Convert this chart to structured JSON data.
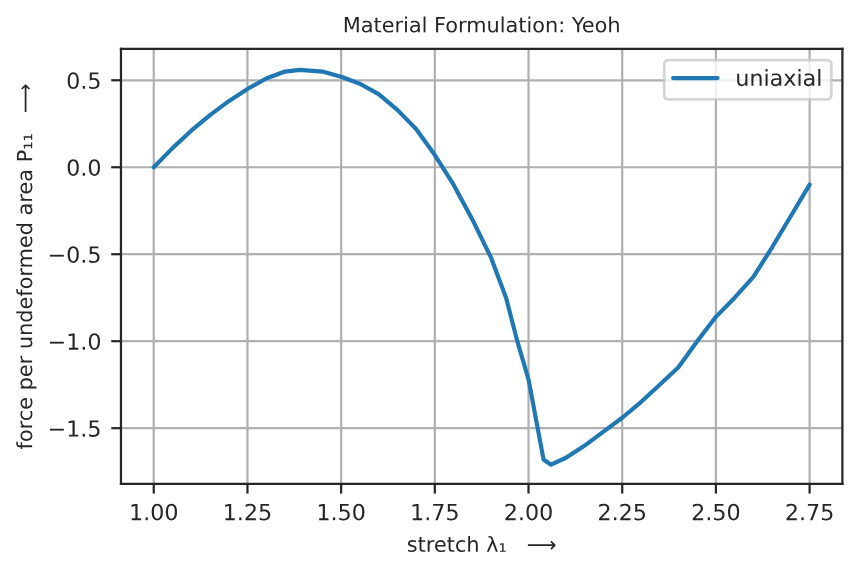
{
  "chart_data": {
    "type": "line",
    "title": "Material Formulation: Yeoh",
    "xlabel": "stretch λ₁   ⟶",
    "ylabel": "force per undeformed area P₁₁   ⟶",
    "xlim": [
      0.9125,
      2.8375
    ],
    "ylim": [
      -1.82,
      0.68
    ],
    "xticks": [
      {
        "value": 1.0,
        "label": "1.00"
      },
      {
        "value": 1.25,
        "label": "1.25"
      },
      {
        "value": 1.5,
        "label": "1.50"
      },
      {
        "value": 1.75,
        "label": "1.75"
      },
      {
        "value": 2.0,
        "label": "2.00"
      },
      {
        "value": 2.25,
        "label": "2.25"
      },
      {
        "value": 2.5,
        "label": "2.50"
      },
      {
        "value": 2.75,
        "label": "2.75"
      }
    ],
    "yticks": [
      {
        "value": -1.5,
        "label": "−1.5"
      },
      {
        "value": -1.0,
        "label": "−1.0"
      },
      {
        "value": -0.5,
        "label": "−0.5"
      },
      {
        "value": 0.0,
        "label": "0.0"
      },
      {
        "value": 0.5,
        "label": "0.5"
      }
    ],
    "grid": true,
    "legend": "top right",
    "series": [
      {
        "name": "uniaxial",
        "color": "#1f77b4",
        "x": [
          1.0,
          1.05,
          1.1,
          1.15,
          1.2,
          1.25,
          1.3,
          1.35,
          1.39,
          1.45,
          1.5,
          1.55,
          1.6,
          1.65,
          1.7,
          1.75,
          1.8,
          1.85,
          1.9,
          1.94,
          1.97,
          2.0,
          2.02,
          2.04,
          2.06,
          2.1,
          2.15,
          2.2,
          2.25,
          2.3,
          2.35,
          2.4,
          2.45,
          2.5,
          2.55,
          2.6,
          2.65,
          2.7,
          2.75
        ],
        "values": [
          0.0,
          0.11,
          0.21,
          0.3,
          0.38,
          0.45,
          0.51,
          0.55,
          0.56,
          0.55,
          0.52,
          0.48,
          0.42,
          0.33,
          0.22,
          0.07,
          -0.1,
          -0.3,
          -0.52,
          -0.75,
          -1.0,
          -1.22,
          -1.45,
          -1.68,
          -1.71,
          -1.67,
          -1.6,
          -1.52,
          -1.44,
          -1.35,
          -1.25,
          -1.15,
          -1.0,
          -0.86,
          -0.75,
          -0.63,
          -0.46,
          -0.28,
          -0.1
        ]
      }
    ]
  }
}
